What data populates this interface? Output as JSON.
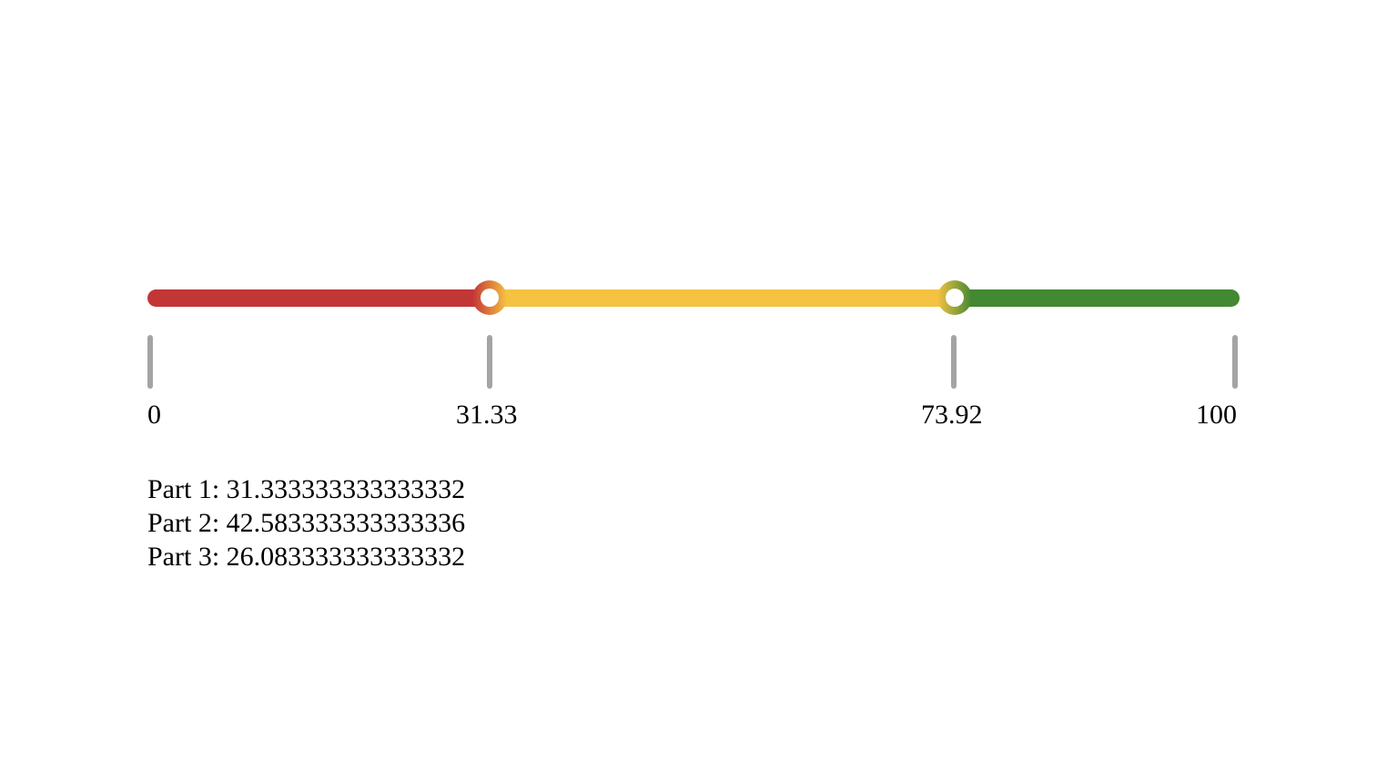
{
  "slider": {
    "min": 0,
    "max": 100,
    "handles": [
      31.333333333333332,
      73.91666666666667
    ],
    "colors": {
      "segment_1": "#c33636",
      "segment_2": "#f5c242",
      "segment_3": "#438833",
      "tick": "#a4a4a4"
    },
    "ticks": [
      {
        "value": 0,
        "label": "0"
      },
      {
        "value": 31.33,
        "label": "31.33"
      },
      {
        "value": 73.92,
        "label": "73.92"
      },
      {
        "value": 100,
        "label": "100"
      }
    ]
  },
  "parts": [
    {
      "label": "Part 1: ",
      "value": "31.333333333333332"
    },
    {
      "label": "Part 2: ",
      "value": "42.583333333333336"
    },
    {
      "label": "Part 3: ",
      "value": "26.083333333333332"
    }
  ]
}
